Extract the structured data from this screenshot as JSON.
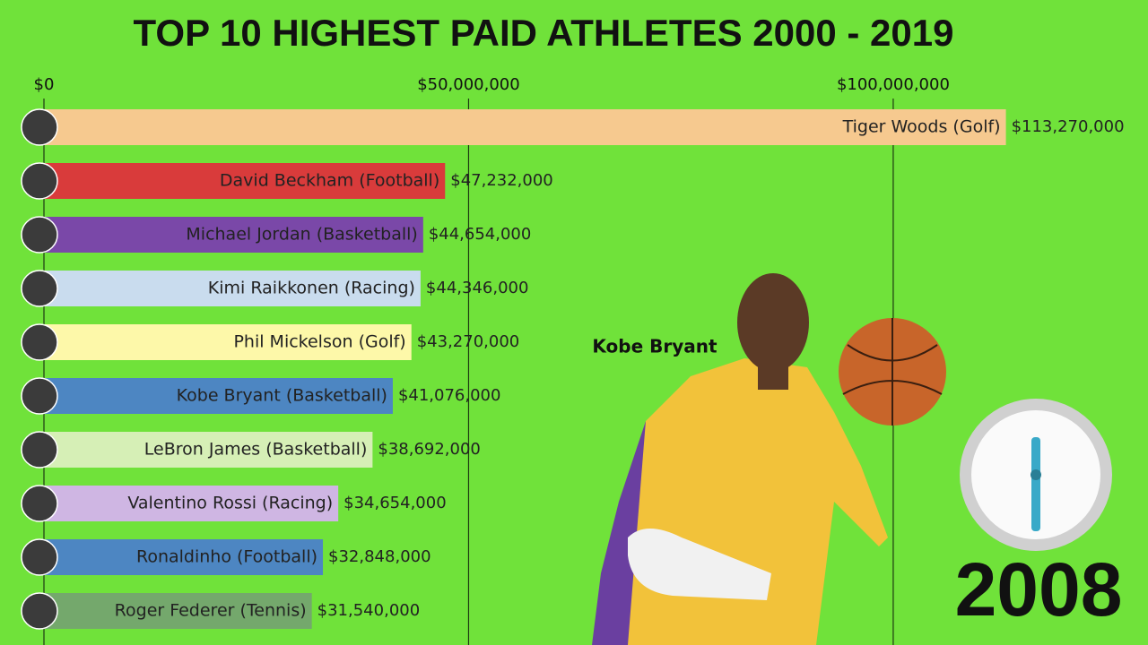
{
  "chart_data": {
    "type": "bar",
    "orientation": "horizontal",
    "title": "TOP 10 HIGHEST PAID ATHLETES 2000 - 2019",
    "categories": [
      "Tiger Woods (Golf)",
      "David Beckham (Football)",
      "Michael Jordan (Basketball)",
      "Kimi Raikkonen (Racing)",
      "Phil Mickelson (Golf)",
      "Kobe Bryant (Basketball)",
      "LeBron James (Basketball)",
      "Valentino Rossi (Racing)",
      "Ronaldinho (Football)",
      "Roger Federer (Tennis)"
    ],
    "values": [
      113270000,
      47232000,
      44654000,
      44346000,
      43270000,
      41076000,
      38692000,
      34654000,
      32848000,
      31540000
    ],
    "value_labels": [
      "$113,270,000",
      "$47,232,000",
      "$44,654,000",
      "$44,346,000",
      "$43,270,000",
      "$41,076,000",
      "$38,692,000",
      "$34,654,000",
      "$32,848,000",
      "$31,540,000"
    ],
    "colors": [
      "#f6c98f",
      "#d93b3b",
      "#7a48a8",
      "#c9dcee",
      "#fdf8a9",
      "#4d86c2",
      "#d6efb6",
      "#cfb6e3",
      "#4d86c2",
      "#74a86c"
    ],
    "xlim": [
      0,
      130000000
    ],
    "xticks": [
      {
        "value": 0,
        "label": "$0"
      },
      {
        "value": 50000000,
        "label": "$50,000,000"
      },
      {
        "value": 100000000,
        "label": "$100,000,000"
      }
    ],
    "grid": true,
    "highlight": "Kobe Bryant",
    "year": "2008"
  }
}
